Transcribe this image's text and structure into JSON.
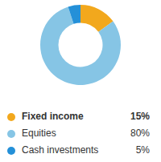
{
  "chart_data": {
    "type": "pie",
    "categories": [
      "Fixed income",
      "Equities",
      "Cash investments"
    ],
    "values": [
      15,
      80,
      5
    ],
    "value_labels": [
      "15%",
      "80%",
      "5%"
    ],
    "colors": [
      "#f2a81d",
      "#86c5e5",
      "#2490d8"
    ],
    "legend": "bottom",
    "data_labels": false
  }
}
